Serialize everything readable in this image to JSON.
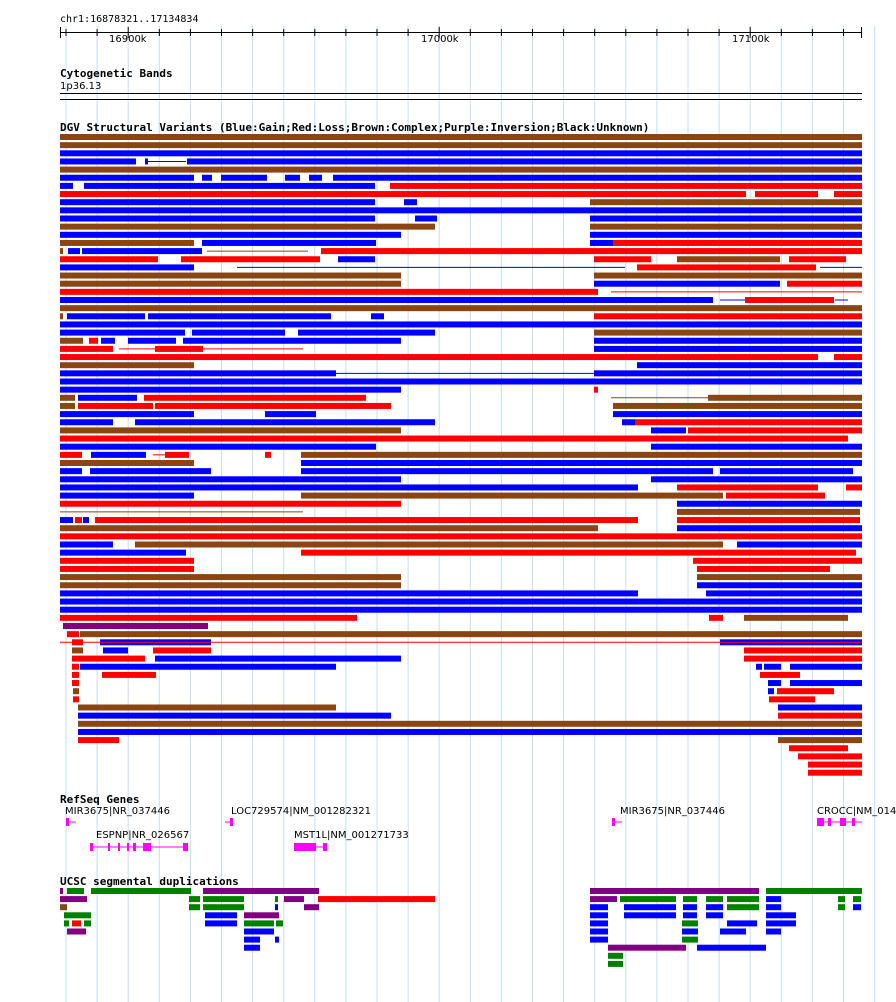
{
  "region": {
    "label": "chr1:16878321..17134834",
    "ticks": [
      "16900k",
      "17000k",
      "17100k"
    ]
  },
  "cytobands": {
    "title": "Cytogenetic Bands",
    "band": "1p36.13"
  },
  "dgv": {
    "title": "DGV Structural Variants (Blue:Gain;Red:Loss;Brown:Complex;Purple:Inversion;Black:Unknown)",
    "legend": [
      {
        "label": "Gain",
        "color": "#0000ff"
      },
      {
        "label": "Loss",
        "color": "#ff0000"
      },
      {
        "label": "Complex",
        "color": "#8b4513"
      },
      {
        "label": "Inversion",
        "color": "#800080"
      },
      {
        "label": "Unknown",
        "color": "#000000"
      }
    ]
  },
  "refseq": {
    "title": "RefSeq Genes",
    "genes": [
      {
        "label": "MIR3675|NR_037446"
      },
      {
        "label": "LOC729574|NM_001282321"
      },
      {
        "label": "ESPNP|NR_026567"
      },
      {
        "label": "MST1L|NM_001271733"
      },
      {
        "label": "MIR3675|NR_037446"
      },
      {
        "label": "CROCC|NM_014"
      }
    ],
    "color": "#ff00ff"
  },
  "segdups": {
    "title": "UCSC segmental duplications",
    "colors": [
      "#800080",
      "#008000",
      "#0000ff",
      "#ff0000",
      "#8b4513"
    ]
  }
}
